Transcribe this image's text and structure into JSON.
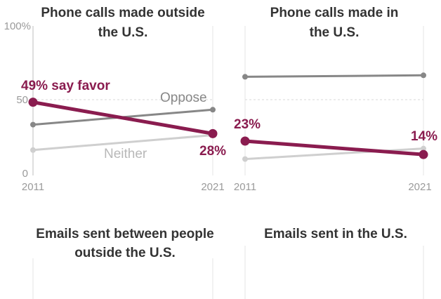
{
  "chart_data": [
    {
      "type": "line",
      "title_lines": [
        "Phone calls made outside",
        "the U.S."
      ],
      "x": [
        "2011",
        "2021"
      ],
      "ylim": [
        0,
        100
      ],
      "y_ticks": [
        "100%",
        "50",
        "0"
      ],
      "grid": "dashed at 50",
      "colors": {
        "favor": "#8a1c4f",
        "oppose": "#878787",
        "neither": "#cfcfcf"
      },
      "series": [
        {
          "key": "favor",
          "values": [
            49,
            28
          ]
        },
        {
          "key": "oppose",
          "values": [
            34,
            44
          ]
        },
        {
          "key": "neither",
          "values": [
            17,
            27
          ]
        }
      ],
      "series_labels": {
        "favor": "say favor",
        "oppose": "Oppose",
        "neither": "Neither"
      },
      "value_labels": {
        "start": "49% say favor",
        "end": "28%"
      }
    },
    {
      "type": "line",
      "title_lines": [
        "Phone calls made in",
        "the U.S."
      ],
      "x": [
        "2011",
        "2021"
      ],
      "ylim": [
        0,
        100
      ],
      "grid": "dashed at 50",
      "series": [
        {
          "key": "favor",
          "values": [
            23,
            14
          ]
        },
        {
          "key": "oppose",
          "values": [
            66,
            67
          ]
        },
        {
          "key": "neither",
          "values": [
            11,
            18
          ]
        }
      ],
      "value_labels": {
        "start": "23%",
        "end": "14%"
      }
    },
    {
      "type": "line",
      "title_lines": [
        "Emails sent between people",
        "outside the U.S."
      ],
      "series": []
    },
    {
      "type": "line",
      "title_lines": [
        "Emails sent in the U.S."
      ],
      "series": []
    }
  ]
}
